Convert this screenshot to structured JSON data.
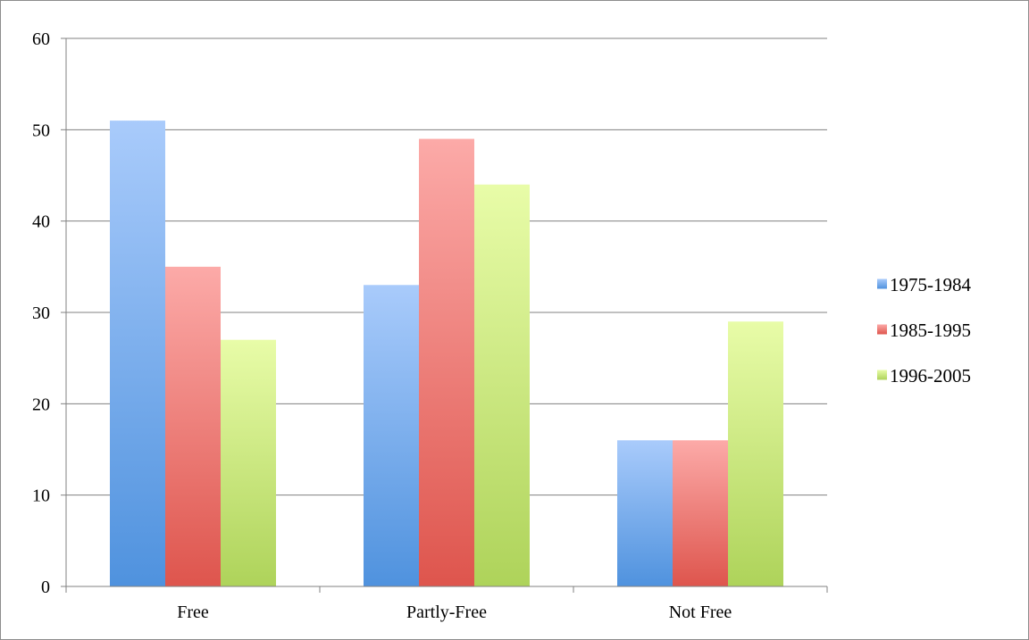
{
  "chart_data": {
    "type": "bar",
    "title": "",
    "xlabel": "",
    "ylabel": "",
    "categories": [
      "Free",
      "Partly-Free",
      "Not Free"
    ],
    "series": [
      {
        "name": "1975-1984",
        "values": [
          51,
          33,
          16
        ],
        "color": "#5b9bd5",
        "color_light": "#a9cbfb",
        "color_dark": "#4f92de"
      },
      {
        "name": "1985-1995",
        "values": [
          35,
          49,
          16
        ],
        "color": "#e06666",
        "color_light": "#fcaaa8",
        "color_dark": "#de554d"
      },
      {
        "name": "1996-2005",
        "values": [
          27,
          44,
          29
        ],
        "color": "#b3d46a",
        "color_light": "#e8fca8",
        "color_dark": "#aed35a"
      }
    ],
    "ylim": [
      0,
      60
    ],
    "yticks": [
      0,
      10,
      20,
      30,
      40,
      50,
      60
    ],
    "grid": true,
    "legend_position": "right",
    "gridline_color": "#808080"
  }
}
